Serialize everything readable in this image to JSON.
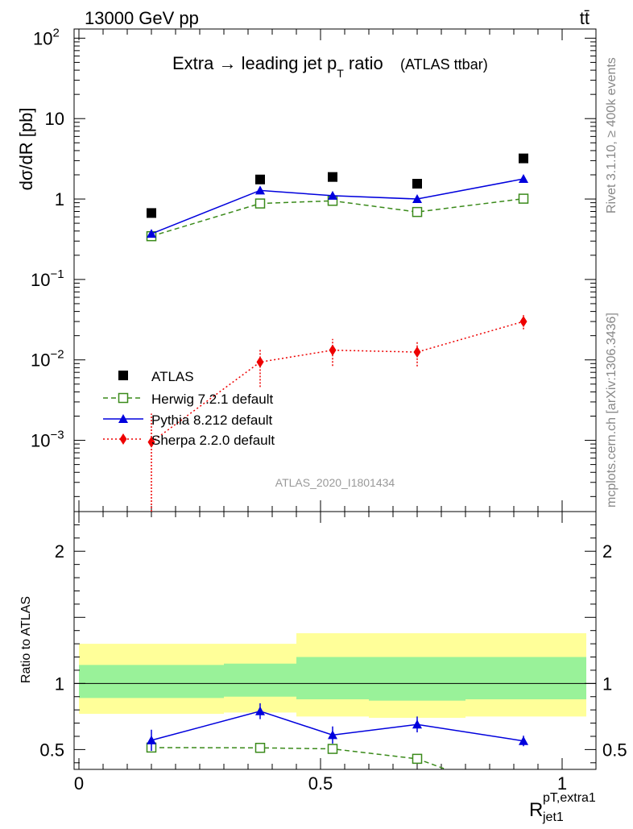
{
  "header": {
    "energy_label": "13000 GeV pp",
    "process_label": "tt̄",
    "title_main": "Extra → leading jet p",
    "title_sub": "T",
    "title_tail": " ratio",
    "title_paren": "(ATLAS ttbar)",
    "side_rivet": "Rivet 3.1.10, ≥ 400k events",
    "side_mcplots": "mcplots.cern.ch [arXiv:1306.3436]",
    "watermark": "ATLAS_2020_I1801434"
  },
  "axes": {
    "ylabel_main": "dσ/dR [pb]",
    "ylabel_ratio": "Ratio to ATLAS",
    "xlabel": "R",
    "xlabel_sup": "pT,extra1",
    "xlabel_sub": "jet1"
  },
  "legend": [
    {
      "label": "ATLAS",
      "color": "#000000",
      "marker": "square-filled",
      "line": "none"
    },
    {
      "label": "Herwig 7.2.1 default",
      "color": "#3a8a1a",
      "marker": "square-open",
      "line": "dashed"
    },
    {
      "label": "Pythia 8.212 default",
      "color": "#0000dd",
      "marker": "triangle",
      "line": "solid"
    },
    {
      "label": "Sherpa 2.2.0 default",
      "color": "#ee0000",
      "marker": "diamond",
      "line": "dotted"
    }
  ],
  "chart_data": {
    "type": "scatter",
    "x_range": [
      -0.01,
      1.07
    ],
    "main_y_log_range": [
      0.00013,
      130
    ],
    "ratio_y_range": [
      0.35,
      2.3
    ],
    "x_ticks": [
      {
        "v": 0,
        "label": "0"
      },
      {
        "v": 0.5,
        "label": "0.5"
      },
      {
        "v": 1,
        "label": "1"
      }
    ],
    "y_ticks_main": [
      {
        "v": 100,
        "b": "10",
        "e": "2"
      },
      {
        "v": 10,
        "b": "10",
        "e": ""
      },
      {
        "v": 1,
        "b": "1",
        "e": ""
      },
      {
        "v": 0.1,
        "b": "10",
        "e": "−1"
      },
      {
        "v": 0.01,
        "b": "10",
        "e": "−2"
      },
      {
        "v": 0.001,
        "b": "10",
        "e": "−3"
      }
    ],
    "y_ticks_ratio": [
      {
        "v": 0.5,
        "label": "0.5"
      },
      {
        "v": 1,
        "label": "1"
      },
      {
        "v": 2,
        "label": "2"
      }
    ],
    "x": [
      0.15,
      0.375,
      0.525,
      0.7,
      0.92
    ],
    "series": [
      {
        "name": "ATLAS",
        "color": "#000000",
        "values": [
          0.67,
          1.75,
          1.88,
          1.55,
          3.2
        ]
      },
      {
        "name": "Herwig 7.2.1 default",
        "color": "#3a8a1a",
        "values": [
          0.345,
          0.88,
          0.95,
          0.69,
          1.01
        ]
      },
      {
        "name": "Pythia 8.212 default",
        "color": "#0000dd",
        "values": [
          0.37,
          1.28,
          1.1,
          1.0,
          1.78
        ]
      },
      {
        "name": "Sherpa 2.2.0 default",
        "color": "#ee0000",
        "values": [
          0.00095,
          0.0094,
          0.0132,
          0.0125,
          0.03
        ],
        "err_lo": [
          0.00095,
          0.0048,
          0.0048,
          0.0042,
          0.006
        ],
        "err_hi": [
          0.0012,
          0.0042,
          0.005,
          0.0045,
          0.006
        ]
      }
    ],
    "ratio_series": [
      {
        "name": "Herwig 7.2.1 default",
        "color": "#3a8a1a",
        "x": [
          0.15,
          0.375,
          0.525,
          0.7,
          0.76
        ],
        "values": [
          0.515,
          0.513,
          0.505,
          0.43,
          0.35
        ]
      },
      {
        "name": "Pythia 8.212 default",
        "color": "#0000dd",
        "x": [
          0.15,
          0.375,
          0.525,
          0.7,
          0.92
        ],
        "values": [
          0.57,
          0.79,
          0.61,
          0.69,
          0.565
        ],
        "err": [
          0.08,
          0.06,
          0.065,
          0.06,
          0.04
        ]
      }
    ],
    "bands": [
      {
        "x0": 0.0,
        "x1": 0.3,
        "yellow": [
          0.77,
          1.3
        ],
        "green": [
          0.89,
          1.14
        ]
      },
      {
        "x0": 0.3,
        "x1": 0.45,
        "yellow": [
          0.78,
          1.3
        ],
        "green": [
          0.9,
          1.15
        ]
      },
      {
        "x0": 0.45,
        "x1": 0.6,
        "yellow": [
          0.75,
          1.38
        ],
        "green": [
          0.88,
          1.2
        ]
      },
      {
        "x0": 0.6,
        "x1": 0.8,
        "yellow": [
          0.74,
          1.38
        ],
        "green": [
          0.87,
          1.2
        ]
      },
      {
        "x0": 0.8,
        "x1": 1.05,
        "yellow": [
          0.75,
          1.38
        ],
        "green": [
          0.88,
          1.2
        ]
      }
    ]
  }
}
